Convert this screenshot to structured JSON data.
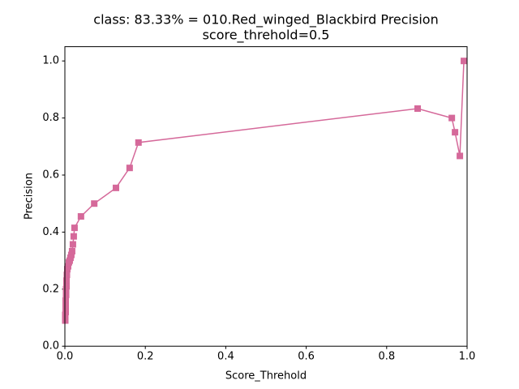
{
  "chart_data": {
    "type": "line",
    "title": [
      "class: 83.33% = 010.Red_winged_Blackbird Precision",
      "score_threhold=0.5"
    ],
    "xlabel": "Score_Threhold",
    "ylabel": "Precision",
    "series": [
      {
        "color": "#d5699a",
        "marker": "square",
        "x": [
          0.992,
          0.982,
          0.97,
          0.962,
          0.877,
          0.183,
          0.161,
          0.127,
          0.073,
          0.04,
          0.024,
          0.022,
          0.02,
          0.018,
          0.016,
          0.014,
          0.012,
          0.01,
          0.008,
          0.006,
          0.005,
          0.004,
          0.004,
          0.003,
          0.003,
          0.002,
          0.002,
          0.002,
          0.001,
          0.001,
          0.001
        ],
        "values": [
          1.0,
          0.667,
          0.75,
          0.8,
          0.833,
          0.714,
          0.625,
          0.555,
          0.5,
          0.455,
          0.415,
          0.385,
          0.357,
          0.333,
          0.32,
          0.31,
          0.3,
          0.294,
          0.28,
          0.27,
          0.25,
          0.23,
          0.21,
          0.2,
          0.18,
          0.16,
          0.14,
          0.12,
          0.11,
          0.1,
          0.09
        ]
      }
    ],
    "xlim": [
      0,
      1
    ],
    "ylim": [
      0,
      1.05
    ],
    "xticks": [
      {
        "value": 0,
        "label": "0.0"
      },
      0.2,
      0.4,
      0.6,
      0.8,
      {
        "value": 1,
        "label": "1.0"
      }
    ],
    "yticks": [
      {
        "value": 0,
        "label": "0.0"
      },
      0.2,
      0.4,
      0.6,
      0.8,
      {
        "value": 1,
        "label": "1.0"
      }
    ],
    "grid": false
  }
}
